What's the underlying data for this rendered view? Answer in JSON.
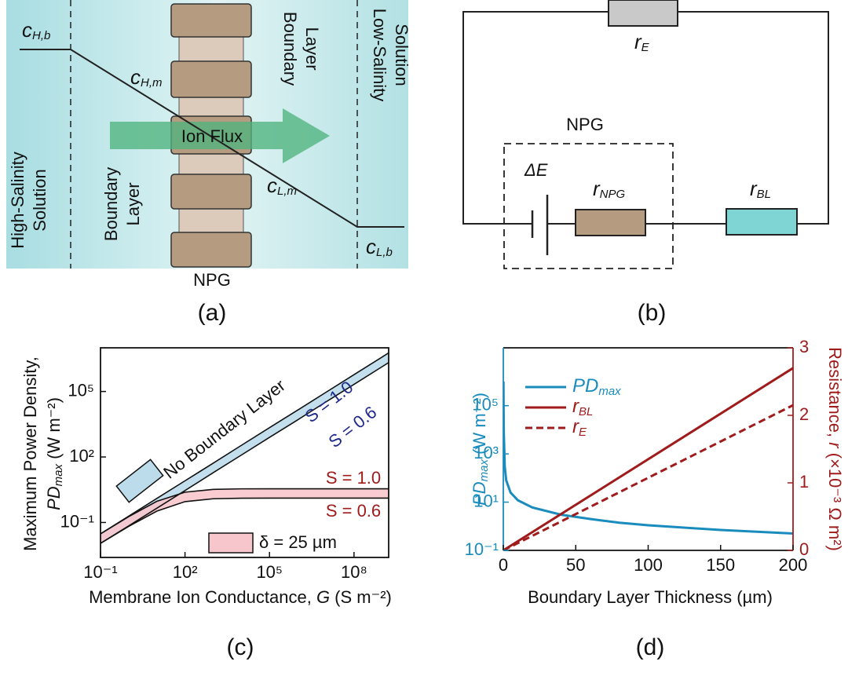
{
  "panel_a": {
    "concentrations": [
      {
        "symbol": "c",
        "sub": "H,b"
      },
      {
        "symbol": "c",
        "sub": "H,m"
      },
      {
        "symbol": "c",
        "sub": "L,m"
      },
      {
        "symbol": "c",
        "sub": "L,b"
      }
    ],
    "high_salinity": [
      "High-Salinity",
      "Solution"
    ],
    "boundary_left": [
      "Boundary",
      "Layer"
    ],
    "boundary_right": [
      "Boundary",
      "Layer"
    ],
    "low_salinity": [
      "Low-Salinity",
      "Solution"
    ],
    "flux": "Ion Flux",
    "membrane": "NPG",
    "caption": "(a)"
  },
  "panel_b": {
    "r_e": {
      "symbol": "r",
      "sub": "E"
    },
    "group": "NPG",
    "emf": "ΔE",
    "r_npg": {
      "symbol": "r",
      "sub": "NPG"
    },
    "r_bl": {
      "symbol": "r",
      "sub": "BL"
    },
    "caption": "(b)"
  },
  "chart_data": [
    {
      "type": "band",
      "log_x": true,
      "log_y": true,
      "ylabel": [
        "Maximum Power Density,",
        {
          "main": "PD",
          "sub": "max",
          "unit": " (W m⁻²)"
        }
      ],
      "xlabel": {
        "text": "Membrane Ion Conductance, ",
        "var": "G",
        "unit": " (S m⁻²)"
      },
      "caption": "(c)",
      "xlim": [
        0.1,
        1700000000
      ],
      "ylim": [
        0.0025,
        10000000
      ],
      "xticks": [
        {
          "value": 0.1,
          "label": "10⁻¹"
        },
        {
          "value": 100,
          "label": "10²"
        },
        {
          "value": 100000,
          "label": "10⁵"
        },
        {
          "value": 100000000,
          "label": "10⁸"
        }
      ],
      "yticks": [
        {
          "value": 0.1,
          "label": "10⁻¹"
        },
        {
          "value": 100,
          "label": "10²"
        },
        {
          "value": 100000,
          "label": "10⁵"
        }
      ],
      "x": [
        0.1,
        1,
        10,
        100,
        1000,
        10000,
        100000,
        1000000,
        10000000,
        100000000,
        1000000000,
        1700000000
      ],
      "bands": [
        {
          "name": "No Boundary Layer",
          "color": "#bcdcec",
          "label_color": "#1f2a8a",
          "series": [
            {
              "label": "S = 1.0",
              "values": [
                0.03,
                0.195,
                1.26,
                8.1,
                52,
                340,
                2200,
                14000,
                91000,
                590000,
                3800000,
                5900000
              ]
            },
            {
              "label": "S = 0.6",
              "values": [
                0.011,
                0.07,
                0.45,
                2.9,
                19,
                122,
                790,
                5000,
                33000,
                212000,
                1370000,
                2100000
              ]
            }
          ]
        },
        {
          "name": "δ = 25 µm",
          "color": "#f7c6cc",
          "label_color": "#a01c1c",
          "series": [
            {
              "label": "S = 1.0",
              "values": [
                0.03,
                0.185,
                0.93,
                2.44,
                3.28,
                3.47,
                3.5,
                3.5,
                3.5,
                3.5,
                3.5,
                3.5
              ]
            },
            {
              "label": "S = 0.6",
              "values": [
                0.011,
                0.066,
                0.33,
                0.9,
                1.22,
                1.29,
                1.3,
                1.3,
                1.3,
                1.3,
                1.3,
                1.3
              ]
            }
          ]
        }
      ]
    },
    {
      "type": "line",
      "log_y": true,
      "ylabel": {
        "main": "PD",
        "sub": "max",
        "unit": " (W m⁻²)"
      },
      "y2label": {
        "text": "Resistance, ",
        "var": "r",
        "unit": " (×10⁻³ Ω m²)"
      },
      "xlabel": "Boundary Layer Thickness (µm)",
      "caption": "(d)",
      "xlim": [
        0,
        200
      ],
      "xticks": [
        0,
        50,
        100,
        150,
        200
      ],
      "ylim": [
        0.1,
        25000000
      ],
      "yticks": [
        {
          "value": 0.1,
          "label": "10⁻¹"
        },
        {
          "value": 10,
          "label": "10¹"
        },
        {
          "value": 1000,
          "label": "10³"
        },
        {
          "value": 100000,
          "label": "10⁵"
        }
      ],
      "y2lim": [
        0,
        3
      ],
      "y2ticks": [
        0,
        1,
        2,
        3
      ],
      "y_color": "#1a8bbd",
      "y2_color": "#a01c1c",
      "series": [
        {
          "name": "PD",
          "name_subscript": "max",
          "color": "#1a8bbd",
          "dash": false,
          "x": [
            0.1,
            0.3,
            1,
            2,
            5,
            10,
            20,
            40,
            60,
            80,
            100,
            150,
            200
          ],
          "values": [
            1000000,
            10000,
            300,
            80,
            25,
            12,
            6,
            3,
            2,
            1.4,
            1.1,
            0.7,
            0.5
          ]
        },
        {
          "name": "r",
          "name_subscript": "BL",
          "color": "#a01c1c",
          "dash": false,
          "axis": "y2",
          "x": [
            0,
            200
          ],
          "values": [
            0,
            2.7
          ]
        },
        {
          "name": "r",
          "name_subscript": "E",
          "color": "#a01c1c",
          "dash": true,
          "axis": "y2",
          "x": [
            0,
            200
          ],
          "values": [
            0,
            2.15
          ]
        }
      ]
    }
  ]
}
